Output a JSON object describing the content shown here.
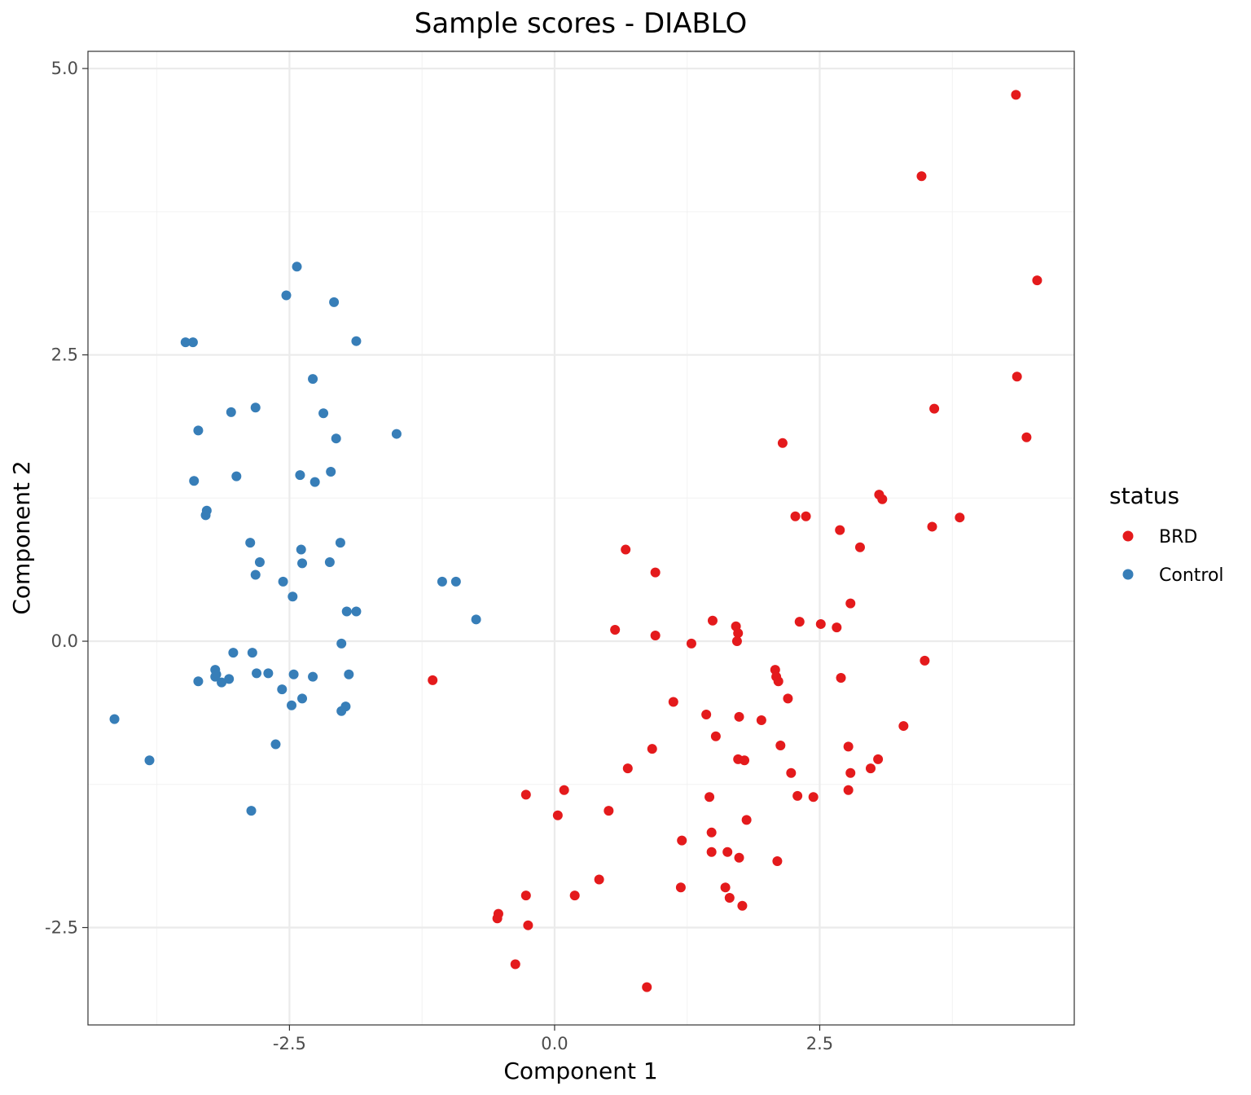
{
  "chart_data": {
    "type": "scatter",
    "title": "Sample scores - DIABLO",
    "xlabel": "Component 1",
    "ylabel": "Component 2",
    "xlim": [
      -4.4,
      4.9
    ],
    "ylim": [
      -3.35,
      5.15
    ],
    "x_ticks": [
      -2.5,
      0.0,
      2.5
    ],
    "x_tick_labels": [
      "-2.5",
      "0.0",
      "2.5"
    ],
    "y_ticks": [
      -2.5,
      0.0,
      2.5,
      5.0
    ],
    "y_tick_labels": [
      "-2.5",
      "0.0",
      "2.5",
      "5.0"
    ],
    "grid": true,
    "legend": {
      "title": "status",
      "position": "right"
    },
    "series": [
      {
        "name": "BRD",
        "color": "#e41a1c",
        "points": [
          [
            4.35,
            4.77
          ],
          [
            3.46,
            4.06
          ],
          [
            4.55,
            3.15
          ],
          [
            4.36,
            2.31
          ],
          [
            3.58,
            2.03
          ],
          [
            4.45,
            1.78
          ],
          [
            2.15,
            1.73
          ],
          [
            3.06,
            1.28
          ],
          [
            3.09,
            1.24
          ],
          [
            2.27,
            1.09
          ],
          [
            2.37,
            1.09
          ],
          [
            3.82,
            1.08
          ],
          [
            3.56,
            1.0
          ],
          [
            2.69,
            0.97
          ],
          [
            2.88,
            0.82
          ],
          [
            0.67,
            0.8
          ],
          [
            0.95,
            0.6
          ],
          [
            2.79,
            0.33
          ],
          [
            1.49,
            0.18
          ],
          [
            2.31,
            0.17
          ],
          [
            2.51,
            0.15
          ],
          [
            2.66,
            0.12
          ],
          [
            1.71,
            0.13
          ],
          [
            1.73,
            0.07
          ],
          [
            0.57,
            0.1
          ],
          [
            0.95,
            0.05
          ],
          [
            1.72,
            0.0
          ],
          [
            1.29,
            -0.02
          ],
          [
            3.49,
            -0.17
          ],
          [
            2.08,
            -0.25
          ],
          [
            2.09,
            -0.31
          ],
          [
            2.11,
            -0.35
          ],
          [
            2.7,
            -0.32
          ],
          [
            -1.15,
            -0.34
          ],
          [
            2.2,
            -0.5
          ],
          [
            1.12,
            -0.53
          ],
          [
            1.43,
            -0.64
          ],
          [
            1.74,
            -0.66
          ],
          [
            1.95,
            -0.69
          ],
          [
            3.29,
            -0.74
          ],
          [
            1.52,
            -0.83
          ],
          [
            2.13,
            -0.91
          ],
          [
            2.77,
            -0.92
          ],
          [
            0.92,
            -0.94
          ],
          [
            1.73,
            -1.03
          ],
          [
            1.79,
            -1.04
          ],
          [
            3.05,
            -1.03
          ],
          [
            2.98,
            -1.11
          ],
          [
            0.69,
            -1.11
          ],
          [
            2.23,
            -1.15
          ],
          [
            2.79,
            -1.15
          ],
          [
            -0.27,
            -1.34
          ],
          [
            0.09,
            -1.3
          ],
          [
            1.46,
            -1.36
          ],
          [
            2.29,
            -1.35
          ],
          [
            2.44,
            -1.36
          ],
          [
            2.77,
            -1.3
          ],
          [
            0.03,
            -1.52
          ],
          [
            0.51,
            -1.48
          ],
          [
            1.81,
            -1.56
          ],
          [
            1.2,
            -1.74
          ],
          [
            1.48,
            -1.67
          ],
          [
            1.48,
            -1.84
          ],
          [
            1.63,
            -1.84
          ],
          [
            1.74,
            -1.89
          ],
          [
            2.1,
            -1.92
          ],
          [
            0.42,
            -2.08
          ],
          [
            1.19,
            -2.15
          ],
          [
            1.61,
            -2.15
          ],
          [
            -0.27,
            -2.22
          ],
          [
            0.19,
            -2.22
          ],
          [
            1.65,
            -2.24
          ],
          [
            1.77,
            -2.31
          ],
          [
            -0.54,
            -2.42
          ],
          [
            -0.53,
            -2.38
          ],
          [
            -0.25,
            -2.48
          ],
          [
            -0.37,
            -2.82
          ],
          [
            0.87,
            -3.02
          ]
        ]
      },
      {
        "name": "Control",
        "color": "#377eb8",
        "points": [
          [
            -2.43,
            3.27
          ],
          [
            -2.53,
            3.02
          ],
          [
            -2.08,
            2.96
          ],
          [
            -3.48,
            2.61
          ],
          [
            -3.41,
            2.61
          ],
          [
            -1.87,
            2.62
          ],
          [
            -2.28,
            2.29
          ],
          [
            -2.82,
            2.04
          ],
          [
            -3.05,
            2.0
          ],
          [
            -2.18,
            1.99
          ],
          [
            -3.36,
            1.84
          ],
          [
            -1.49,
            1.81
          ],
          [
            -2.06,
            1.77
          ],
          [
            -2.11,
            1.48
          ],
          [
            -2.4,
            1.45
          ],
          [
            -2.26,
            1.39
          ],
          [
            -3.0,
            1.44
          ],
          [
            -3.4,
            1.4
          ],
          [
            -3.28,
            1.14
          ],
          [
            -3.29,
            1.1
          ],
          [
            -2.87,
            0.86
          ],
          [
            -2.02,
            0.86
          ],
          [
            -2.39,
            0.8
          ],
          [
            -2.78,
            0.69
          ],
          [
            -2.38,
            0.68
          ],
          [
            -2.12,
            0.69
          ],
          [
            -2.82,
            0.58
          ],
          [
            -2.56,
            0.52
          ],
          [
            -1.06,
            0.52
          ],
          [
            -0.93,
            0.52
          ],
          [
            -2.47,
            0.39
          ],
          [
            -1.96,
            0.26
          ],
          [
            -1.87,
            0.26
          ],
          [
            -0.74,
            0.19
          ],
          [
            -2.01,
            -0.02
          ],
          [
            -3.03,
            -0.1
          ],
          [
            -2.85,
            -0.1
          ],
          [
            -3.2,
            -0.25
          ],
          [
            -3.19,
            -0.29
          ],
          [
            -3.2,
            -0.31
          ],
          [
            -2.81,
            -0.28
          ],
          [
            -2.7,
            -0.28
          ],
          [
            -2.46,
            -0.29
          ],
          [
            -2.28,
            -0.31
          ],
          [
            -1.94,
            -0.29
          ],
          [
            -3.07,
            -0.33
          ],
          [
            -3.14,
            -0.36
          ],
          [
            -3.36,
            -0.35
          ],
          [
            -2.57,
            -0.42
          ],
          [
            -2.38,
            -0.5
          ],
          [
            -2.48,
            -0.56
          ],
          [
            -1.97,
            -0.57
          ],
          [
            -2.01,
            -0.61
          ],
          [
            -4.15,
            -0.68
          ],
          [
            -2.63,
            -0.9
          ],
          [
            -3.82,
            -1.04
          ],
          [
            -2.86,
            -1.48
          ]
        ]
      }
    ]
  }
}
